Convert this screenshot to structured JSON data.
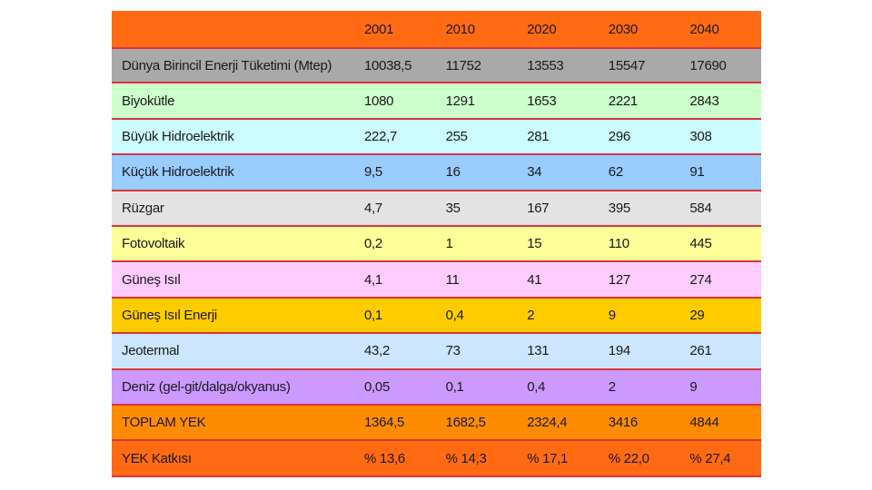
{
  "table": {
    "header": {
      "label": "",
      "years": [
        "2001",
        "2010",
        "2020",
        "2030",
        "2040"
      ]
    },
    "world_row": {
      "label": "Dünya Birincil Enerji Tüketimi (Mtep)",
      "values": [
        "10038,5",
        "11752",
        "13553",
        "15547",
        "17690"
      ]
    },
    "rows": [
      {
        "label": "Biyokütle",
        "values": [
          "1080",
          "1291",
          "1653",
          "2221",
          "2843"
        ],
        "color": "#ccffcc"
      },
      {
        "label": "Büyük Hidroelektrik",
        "values": [
          "222,7",
          "255",
          "281",
          "296",
          "308"
        ],
        "color": "#ccfcff"
      },
      {
        "label": "Küçük Hidroelektrik",
        "values": [
          "9,5",
          "16",
          "34",
          "62",
          "91"
        ],
        "color": "#99ccff"
      },
      {
        "label": "Rüzgar",
        "values": [
          "4,7",
          "35",
          "167",
          "395",
          "584"
        ],
        "color": "#e3e3e3"
      },
      {
        "label": "Fotovoltaik",
        "values": [
          "0,2",
          "1",
          "15",
          "110",
          "445"
        ],
        "color": "#ffff99"
      },
      {
        "label": "Güneş Isıl",
        "values": [
          "4,1",
          "11",
          "41",
          "127",
          "274"
        ],
        "color": "#ffccff"
      },
      {
        "label": "Güneş Isıl Enerji",
        "values": [
          "0,1",
          "0,4",
          "2",
          "9",
          "29"
        ],
        "color": "#ffcc00"
      },
      {
        "label": "Jeotermal",
        "values": [
          "43,2",
          "73",
          "131",
          "194",
          "261"
        ],
        "color": "#cce6ff"
      },
      {
        "label": "Deniz (gel-git/dalga/okyanus)",
        "values": [
          "0,05",
          "0,1",
          "0,4",
          "2",
          "9"
        ],
        "color": "#cc99ff"
      }
    ],
    "total_row": {
      "label": "TOPLAM YEK",
      "values": [
        "1364,5",
        "1682,5",
        "2324,4",
        "3416",
        "4844"
      ]
    },
    "contribution_row": {
      "label": "YEK Katkısı",
      "values": [
        "% 13,6",
        "% 14,3",
        "% 17,1",
        "% 22,0",
        "% 27,4"
      ]
    }
  }
}
